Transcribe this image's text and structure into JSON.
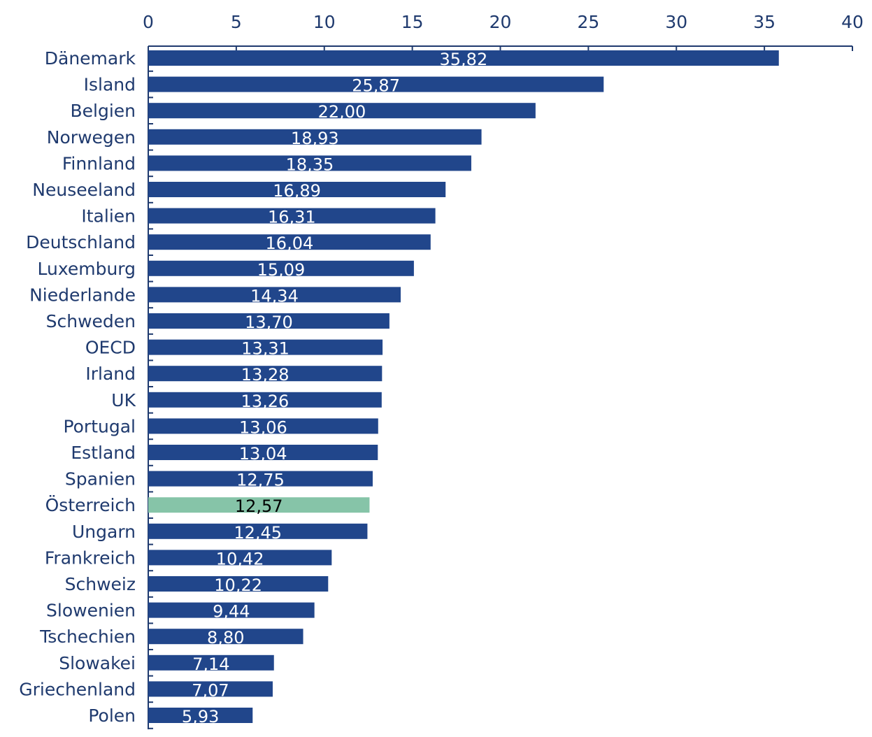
{
  "chart_data": {
    "type": "bar",
    "orientation": "horizontal",
    "title": "",
    "xlabel": "",
    "ylabel": "",
    "xlim": [
      0,
      40
    ],
    "x_ticks": [
      "0",
      "5",
      "10",
      "15",
      "20",
      "25",
      "30",
      "35",
      "40"
    ],
    "x_tick_values": [
      0,
      5,
      10,
      15,
      20,
      25,
      30,
      35,
      40
    ],
    "axis_position": "top",
    "grid": false,
    "legend": "none",
    "bar_color": "#21468b",
    "highlight_color": "#86c4a8",
    "highlight_category": "Österreich",
    "categories": [
      "Dänemark",
      "Island",
      "Belgien",
      "Norwegen",
      "Finnland",
      "Neuseeland",
      "Italien",
      "Deutschland",
      "Luxemburg",
      "Niederlande",
      "Schweden",
      "OECD",
      "Irland",
      "UK",
      "Portugal",
      "Estland",
      "Spanien",
      "Österreich",
      "Ungarn",
      "Frankreich",
      "Schweiz",
      "Slowenien",
      "Tschechien",
      "Slowakei",
      "Griechenland",
      "Polen"
    ],
    "values": [
      35.82,
      25.87,
      22.0,
      18.93,
      18.35,
      16.89,
      16.31,
      16.04,
      15.09,
      14.34,
      13.7,
      13.31,
      13.28,
      13.26,
      13.06,
      13.04,
      12.75,
      12.57,
      12.45,
      10.42,
      10.22,
      9.44,
      8.8,
      7.14,
      7.07,
      5.93
    ],
    "value_labels": [
      "35,82",
      "25,87",
      "22,00",
      "18,93",
      "18,35",
      "16,89",
      "16,31",
      "16,04",
      "15,09",
      "14,34",
      "13,70",
      "13,31",
      "13,28",
      "13,26",
      "13,06",
      "13,04",
      "12,75",
      "12,57",
      "12,45",
      "10,42",
      "10,22",
      "9,44",
      "8,80",
      "7,14",
      "7,07",
      "5,93"
    ]
  }
}
